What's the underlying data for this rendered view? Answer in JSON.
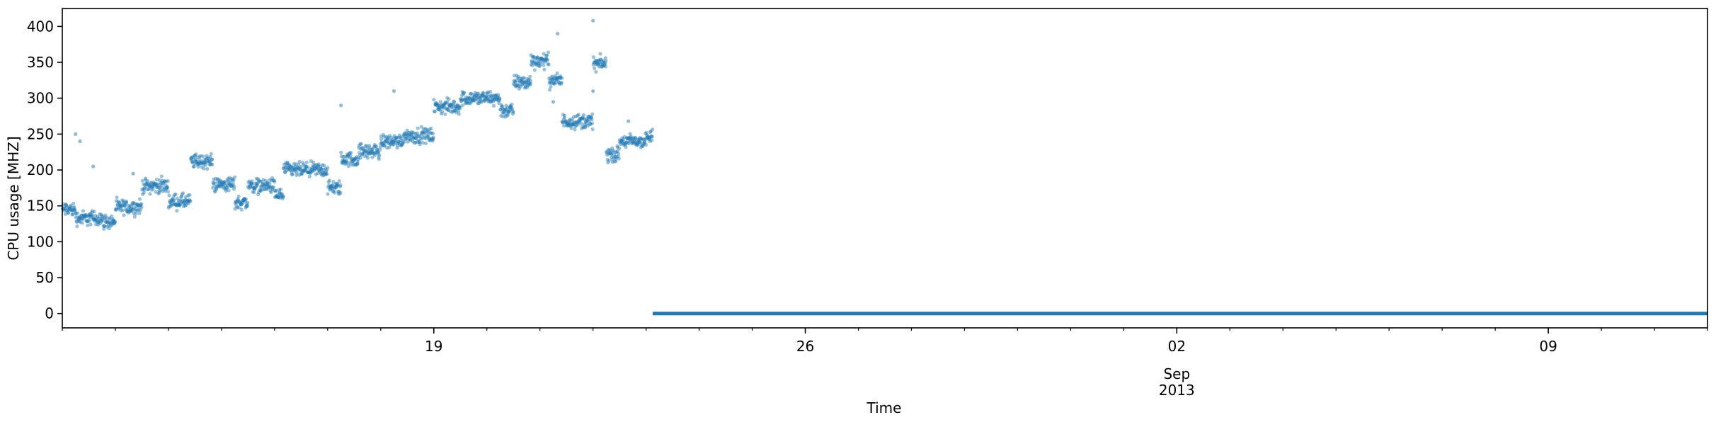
{
  "chart_data": {
    "type": "scatter",
    "title": "",
    "xlabel": "Time",
    "ylabel": "CPU usage [MHZ]",
    "x_range": [
      "2013-08-12",
      "2013-09-12"
    ],
    "ylim": [
      -20,
      425
    ],
    "y_ticks": [
      0,
      50,
      100,
      150,
      200,
      250,
      300,
      350,
      400
    ],
    "x_major_ticks": [
      {
        "date": "2013-08-19",
        "label": "19"
      },
      {
        "date": "2013-08-26",
        "label": "26"
      },
      {
        "date": "2013-09-02",
        "label": "02"
      },
      {
        "date": "2013-09-09",
        "label": "09"
      }
    ],
    "x_secondary_label": [
      "Sep",
      "2013"
    ],
    "x_secondary_anchor": "2013-09-02",
    "grid": false,
    "legend": "none",
    "marker_color": "#1f77b4",
    "series": [
      {
        "name": "",
        "segments": [
          {
            "start": "2013-08-12T00:00",
            "end": "2013-08-12T06:00",
            "value": 145
          },
          {
            "start": "2013-08-12T06:00",
            "end": "2013-08-12T18:00",
            "value": 133
          },
          {
            "start": "2013-08-12T18:00",
            "end": "2013-08-13T00:00",
            "value": 128
          },
          {
            "start": "2013-08-13T00:00",
            "end": "2013-08-13T12:00",
            "value": 148
          },
          {
            "start": "2013-08-13T12:00",
            "end": "2013-08-14T00:00",
            "value": 178
          },
          {
            "start": "2013-08-14T00:00",
            "end": "2013-08-14T10:00",
            "value": 156
          },
          {
            "start": "2013-08-14T10:00",
            "end": "2013-08-14T20:00",
            "value": 212
          },
          {
            "start": "2013-08-14T20:00",
            "end": "2013-08-15T06:00",
            "value": 180
          },
          {
            "start": "2013-08-15T06:00",
            "end": "2013-08-15T12:00",
            "value": 155
          },
          {
            "start": "2013-08-15T12:00",
            "end": "2013-08-16T00:00",
            "value": 178
          },
          {
            "start": "2013-08-16T00:00",
            "end": "2013-08-16T04:00",
            "value": 165
          },
          {
            "start": "2013-08-16T04:00",
            "end": "2013-08-17T00:00",
            "value": 200
          },
          {
            "start": "2013-08-17T00:00",
            "end": "2013-08-17T06:00",
            "value": 175
          },
          {
            "start": "2013-08-17T06:00",
            "end": "2013-08-17T14:00",
            "value": 215
          },
          {
            "start": "2013-08-17T14:00",
            "end": "2013-08-18T00:00",
            "value": 226
          },
          {
            "start": "2013-08-18T00:00",
            "end": "2013-08-18T10:00",
            "value": 240
          },
          {
            "start": "2013-08-18T10:00",
            "end": "2013-08-19T00:00",
            "value": 248
          },
          {
            "start": "2013-08-19T00:00",
            "end": "2013-08-19T12:00",
            "value": 288
          },
          {
            "start": "2013-08-19T12:00",
            "end": "2013-08-20T06:00",
            "value": 300
          },
          {
            "start": "2013-08-20T06:00",
            "end": "2013-08-20T12:00",
            "value": 283
          },
          {
            "start": "2013-08-20T12:00",
            "end": "2013-08-20T20:00",
            "value": 322
          },
          {
            "start": "2013-08-20T20:00",
            "end": "2013-08-21T04:00",
            "value": 352
          },
          {
            "start": "2013-08-21T04:00",
            "end": "2013-08-21T10:00",
            "value": 325
          },
          {
            "start": "2013-08-21T10:00",
            "end": "2013-08-22T00:00",
            "value": 268
          },
          {
            "start": "2013-08-22T00:00",
            "end": "2013-08-22T06:00",
            "value": 348
          },
          {
            "start": "2013-08-22T06:00",
            "end": "2013-08-22T12:00",
            "value": 222
          },
          {
            "start": "2013-08-22T12:00",
            "end": "2013-08-23T00:00",
            "value": 240
          },
          {
            "start": "2013-08-23T00:00",
            "end": "2013-08-23T03:00",
            "value": 245
          }
        ],
        "zero_segment": {
          "start": "2013-08-23T03:00",
          "end": "2013-09-12T00:00",
          "value": 0
        },
        "outliers": [
          {
            "t": "2013-08-12T06:00",
            "v": 250
          },
          {
            "t": "2013-08-12T08:00",
            "v": 240
          },
          {
            "t": "2013-08-12T14:00",
            "v": 205
          },
          {
            "t": "2013-08-13T08:00",
            "v": 195
          },
          {
            "t": "2013-08-14T12:00",
            "v": 220
          },
          {
            "t": "2013-08-17T06:00",
            "v": 290
          },
          {
            "t": "2013-08-18T06:00",
            "v": 310
          },
          {
            "t": "2013-08-20T20:00",
            "v": 360
          },
          {
            "t": "2013-08-21T08:00",
            "v": 390
          },
          {
            "t": "2013-08-21T06:00",
            "v": 295
          },
          {
            "t": "2013-08-22T00:00",
            "v": 408
          },
          {
            "t": "2013-08-22T00:00",
            "v": 310
          },
          {
            "t": "2013-08-22T16:00",
            "v": 268
          }
        ]
      }
    ]
  }
}
